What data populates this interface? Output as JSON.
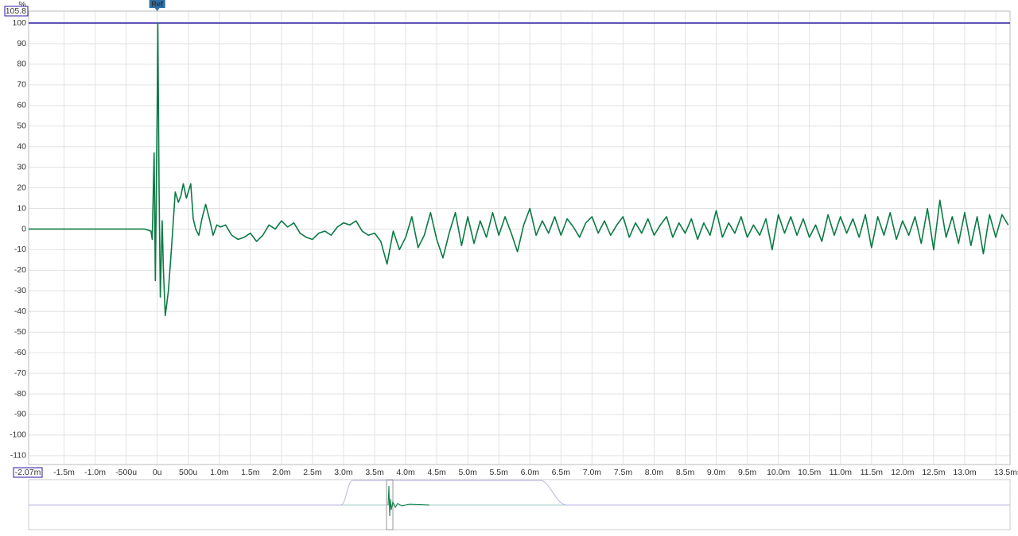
{
  "chart_data": {
    "type": "line",
    "y_label": "%",
    "xlim": [
      -2.07,
      13.73
    ],
    "ylim": [
      -114.3,
      105.8
    ],
    "xticks": [
      {
        "value": -2.07,
        "label": "-2.07m"
      },
      {
        "value": -1.5,
        "label": "-1.5m"
      },
      {
        "value": -1.0,
        "label": "-1.0m"
      },
      {
        "value": -0.5,
        "label": "-500u"
      },
      {
        "value": 0,
        "label": "0u"
      },
      {
        "value": 0.5,
        "label": "500u"
      },
      {
        "value": 1.0,
        "label": "1.0m"
      },
      {
        "value": 1.5,
        "label": "1.5m"
      },
      {
        "value": 2.0,
        "label": "2.0m"
      },
      {
        "value": 2.5,
        "label": "2.5m"
      },
      {
        "value": 3.0,
        "label": "3.0m"
      },
      {
        "value": 3.5,
        "label": "3.5m"
      },
      {
        "value": 4.0,
        "label": "4.0m"
      },
      {
        "value": 4.5,
        "label": "4.5m"
      },
      {
        "value": 5.0,
        "label": "5.0m"
      },
      {
        "value": 5.5,
        "label": "5.5m"
      },
      {
        "value": 6.0,
        "label": "6.0m"
      },
      {
        "value": 6.5,
        "label": "6.5m"
      },
      {
        "value": 7.0,
        "label": "7.0m"
      },
      {
        "value": 7.5,
        "label": "7.5m"
      },
      {
        "value": 8.0,
        "label": "8.0m"
      },
      {
        "value": 8.5,
        "label": "8.5m"
      },
      {
        "value": 9.0,
        "label": "9.0m"
      },
      {
        "value": 9.5,
        "label": "9.5m"
      },
      {
        "value": 10.0,
        "label": "10.0m"
      },
      {
        "value": 10.5,
        "label": "10.5m"
      },
      {
        "value": 11.0,
        "label": "11.0m"
      },
      {
        "value": 11.5,
        "label": "11.5m"
      },
      {
        "value": 12.0,
        "label": "12.0m"
      },
      {
        "value": 12.5,
        "label": "12.5m"
      },
      {
        "value": 13.0,
        "label": "13.0m"
      },
      {
        "value": 13.5,
        "label": "13.5ms"
      }
    ],
    "yticks": [
      105.8,
      100,
      90,
      80,
      70,
      60,
      50,
      40,
      30,
      20,
      10,
      0,
      -10,
      -20,
      -30,
      -40,
      -50,
      -60,
      -70,
      -80,
      -90,
      -100,
      -110
    ],
    "grid": true,
    "hline": {
      "value": 100,
      "color": "#2b1aa0"
    },
    "marker": {
      "label": "Ref",
      "x": 0,
      "color": "#2c6fa8"
    },
    "x": [
      -2.07,
      -1.0,
      -0.2,
      -0.1,
      -0.08,
      -0.05,
      -0.03,
      0,
      0.01,
      0.03,
      0.05,
      0.08,
      0.1,
      0.13,
      0.18,
      0.24,
      0.29,
      0.34,
      0.38,
      0.42,
      0.47,
      0.54,
      0.58,
      0.62,
      0.67,
      0.72,
      0.78,
      0.84,
      0.9,
      0.96,
      1.02,
      1.1,
      1.2,
      1.3,
      1.4,
      1.5,
      1.6,
      1.7,
      1.8,
      1.9,
      2.0,
      2.1,
      2.2,
      2.3,
      2.4,
      2.5,
      2.6,
      2.7,
      2.8,
      2.9,
      3.0,
      3.1,
      3.2,
      3.3,
      3.4,
      3.5,
      3.6,
      3.7,
      3.8,
      3.9,
      4.0,
      4.1,
      4.2,
      4.3,
      4.4,
      4.5,
      4.6,
      4.7,
      4.8,
      4.9,
      5.0,
      5.1,
      5.2,
      5.3,
      5.4,
      5.5,
      5.6,
      5.7,
      5.8,
      5.9,
      6.0,
      6.1,
      6.2,
      6.3,
      6.4,
      6.5,
      6.6,
      6.7,
      6.8,
      6.9,
      7.0,
      7.1,
      7.2,
      7.3,
      7.4,
      7.5,
      7.6,
      7.7,
      7.8,
      7.9,
      8.0,
      8.1,
      8.2,
      8.3,
      8.4,
      8.5,
      8.6,
      8.7,
      8.8,
      8.9,
      9.0,
      9.1,
      9.2,
      9.3,
      9.4,
      9.5,
      9.6,
      9.7,
      9.8,
      9.9,
      10.0,
      10.1,
      10.2,
      10.3,
      10.4,
      10.5,
      10.6,
      10.7,
      10.8,
      10.9,
      11.0,
      11.1,
      11.2,
      11.3,
      11.4,
      11.5,
      11.6,
      11.7,
      11.8,
      11.9,
      12.0,
      12.1,
      12.2,
      12.3,
      12.4,
      12.5,
      12.6,
      12.7,
      12.8,
      12.9,
      13.0,
      13.1,
      13.2,
      13.3,
      13.4,
      13.5,
      13.6,
      13.7
    ],
    "series": [
      {
        "color": "#0b7a45",
        "values": [
          0,
          0,
          0,
          -1,
          -5,
          37,
          -25,
          60,
          100,
          20,
          -33,
          4,
          -20,
          -42,
          -30,
          -5,
          18,
          13,
          16,
          22,
          15,
          22,
          5,
          0,
          -3,
          5,
          12,
          5,
          -3,
          2,
          1,
          2,
          -3,
          -5,
          -4,
          -2,
          -6,
          -3,
          2,
          0,
          4,
          1,
          3,
          -2,
          -4,
          -5,
          -2,
          -1,
          -3,
          1,
          3,
          2,
          4,
          -1,
          -3,
          -2,
          -6,
          -17,
          -1,
          -10,
          -4,
          6,
          -9,
          -3,
          8,
          -5,
          -14,
          -2,
          8,
          -8,
          6,
          -7,
          4,
          -4,
          8,
          -3,
          6,
          -2,
          -11,
          2,
          10,
          -3,
          4,
          -2,
          6,
          -3,
          5,
          1,
          -4,
          3,
          6,
          -2,
          4,
          -3,
          2,
          6,
          -4,
          3,
          -2,
          5,
          -3,
          2,
          6,
          -4,
          3,
          -2,
          5,
          -5,
          3,
          -3,
          9,
          -4,
          3,
          -2,
          6,
          -4,
          2,
          -3,
          5,
          -10,
          7,
          -2,
          6,
          -3,
          5,
          -4,
          2,
          -6,
          7,
          -3,
          6,
          -2,
          5,
          -4,
          7,
          -9,
          6,
          -3,
          8,
          -5,
          4,
          -3,
          6,
          -7,
          10,
          -10,
          14,
          -4,
          6,
          -7,
          8,
          -8,
          6,
          -12,
          7,
          -4,
          7,
          2
        ]
      }
    ]
  }
}
